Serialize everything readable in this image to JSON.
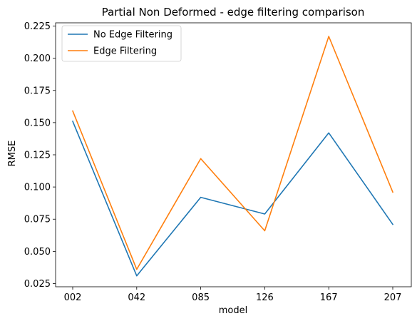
{
  "chart_data": {
    "type": "line",
    "title": "Partial Non Deformed - edge filtering comparison",
    "xlabel": "model",
    "ylabel": "RMSE",
    "categories": [
      "002",
      "042",
      "085",
      "126",
      "167",
      "207"
    ],
    "ylim": [
      0.0225,
      0.2275
    ],
    "yticks": [
      0.025,
      0.05,
      0.075,
      0.1,
      0.125,
      0.15,
      0.175,
      0.2,
      0.225
    ],
    "ytick_labels": [
      "0.025",
      "0.050",
      "0.075",
      "0.100",
      "0.125",
      "0.150",
      "0.175",
      "0.200",
      "0.225"
    ],
    "grid": false,
    "legend_position": "top-left",
    "series": [
      {
        "name": "No Edge Filtering",
        "color": "#1f77b4",
        "values": [
          0.151,
          0.031,
          0.092,
          0.079,
          0.142,
          0.071
        ]
      },
      {
        "name": "Edge Filtering",
        "color": "#ff7f0e",
        "values": [
          0.159,
          0.036,
          0.122,
          0.066,
          0.217,
          0.096
        ]
      }
    ]
  }
}
